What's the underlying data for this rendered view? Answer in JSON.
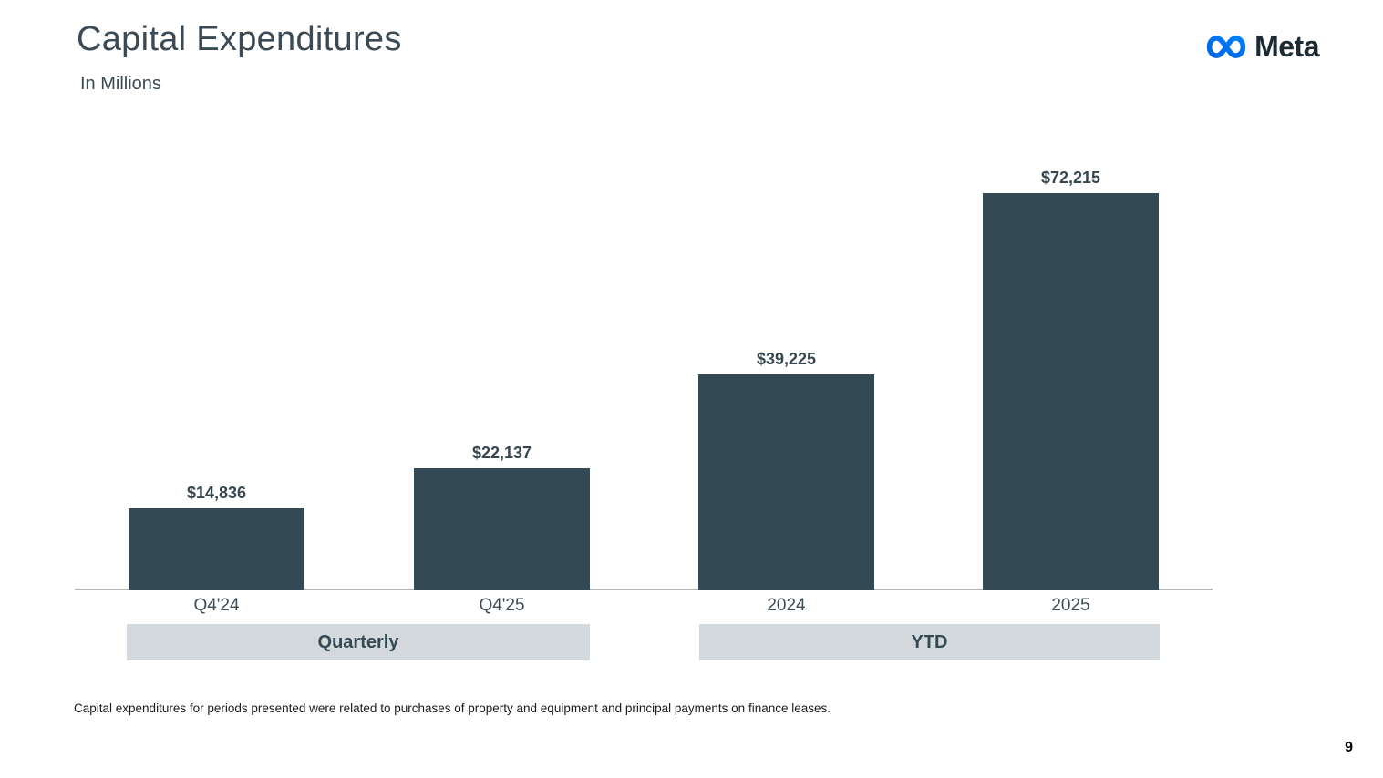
{
  "header": {
    "title": "Capital Expenditures",
    "subtitle": "In Millions",
    "logo_text": "Meta"
  },
  "chart_data": {
    "type": "bar",
    "title": "Capital Expenditures",
    "subtitle": "In Millions",
    "categories": [
      "Q4'24",
      "Q4'25",
      "2024",
      "2025"
    ],
    "values": [
      14836,
      22137,
      39225,
      72215
    ],
    "value_labels": [
      "$14,836",
      "$22,137",
      "$39,225",
      "$72,215"
    ],
    "groups": [
      {
        "label": "Quarterly",
        "span": [
          "Q4'24",
          "Q4'25"
        ]
      },
      {
        "label": "YTD",
        "span": [
          "2024",
          "2025"
        ]
      }
    ],
    "ylim": [
      0,
      72215
    ],
    "xlabel": "",
    "ylabel": "",
    "grid": false,
    "legend": false,
    "bar_color": "#334954",
    "band_color": "#d4d9de",
    "axis_line_color": "#b6b9bb"
  },
  "footnote": {
    "text": "Capital expenditures for periods presented were related to purchases of property and equipment and principal payments on finance leases."
  },
  "footer": {
    "page_number": "9"
  },
  "colors": {
    "title_text": "#3b4a55",
    "value_label_text": "#37474f",
    "logo_text": "#1c2b33",
    "logo_gradient_start": "#0064e0",
    "logo_gradient_end": "#0082fb"
  }
}
